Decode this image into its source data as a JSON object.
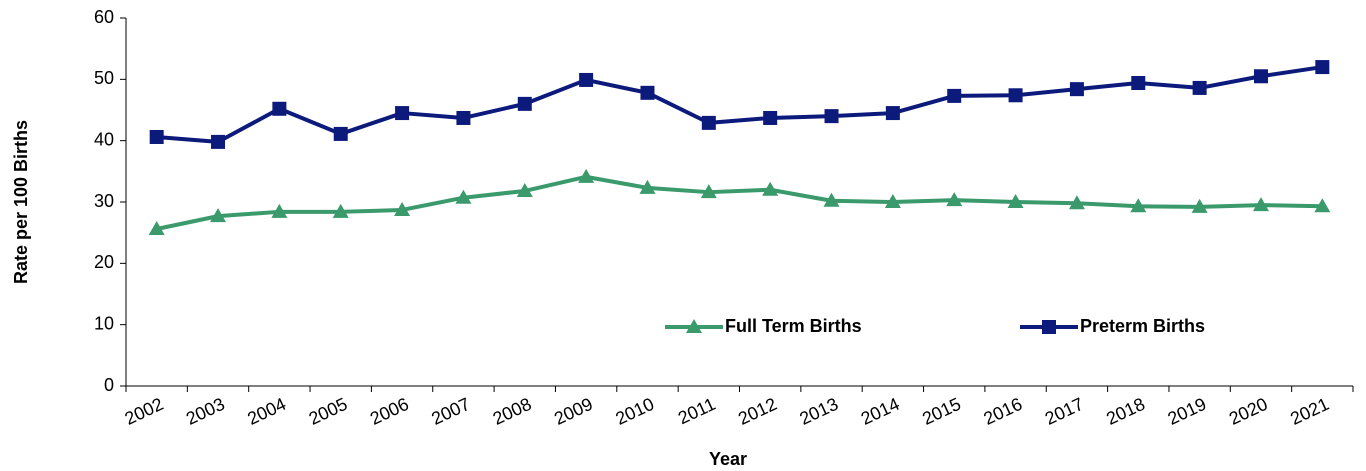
{
  "chart_data": {
    "type": "line",
    "x_label": "Year",
    "y_label": "Rate per 100 Births",
    "categories": [
      "2002",
      "2003",
      "2004",
      "2005",
      "2006",
      "2007",
      "2008",
      "2009",
      "2010",
      "2011",
      "2012",
      "2013",
      "2014",
      "2015",
      "2016",
      "2017",
      "2018",
      "2019",
      "2020",
      "2021"
    ],
    "series": [
      {
        "name": "Full Term Births",
        "color": "#3a9a6b",
        "marker": "triangle",
        "values": [
          25.6,
          27.7,
          28.4,
          28.4,
          28.7,
          30.7,
          31.8,
          34.1,
          32.3,
          31.6,
          32.0,
          30.2,
          30.0,
          30.3,
          30.0,
          29.8,
          29.3,
          29.2,
          29.5,
          29.3
        ]
      },
      {
        "name": "Preterm Births",
        "color": "#0c1a7c",
        "marker": "square",
        "values": [
          40.6,
          39.8,
          45.2,
          41.1,
          44.5,
          43.7,
          46.0,
          49.9,
          47.8,
          42.9,
          43.7,
          44.0,
          44.5,
          47.3,
          47.4,
          48.4,
          49.4,
          48.6,
          50.5,
          52.0
        ]
      }
    ],
    "ylim": [
      0,
      60
    ],
    "yticks": [
      0,
      10,
      20,
      30,
      40,
      50,
      60
    ],
    "grid": false,
    "legend": "bottom-right"
  }
}
